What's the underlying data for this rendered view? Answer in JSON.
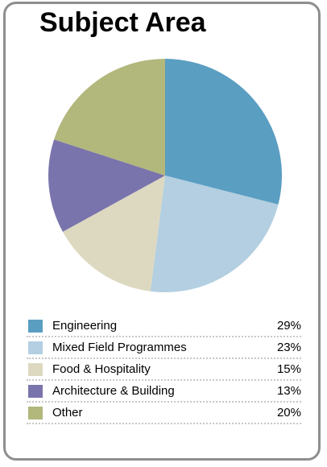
{
  "chart_data": {
    "type": "pie",
    "title": "Subject Area",
    "start_angle_deg": 0,
    "direction": "clockwise",
    "legend_position": "bottom",
    "slices": [
      {
        "label": "Engineering",
        "value": 29,
        "value_label": "29%",
        "color": "#5a9ec2"
      },
      {
        "label": "Mixed Field Programmes",
        "value": 23,
        "value_label": "23%",
        "color": "#b3cfe1"
      },
      {
        "label": "Food & Hospitality",
        "value": 15,
        "value_label": "15%",
        "color": "#ddd9c1"
      },
      {
        "label": "Architecture & Building",
        "value": 13,
        "value_label": "13%",
        "color": "#7a74ac"
      },
      {
        "label": "Other",
        "value": 20,
        "value_label": "20%",
        "color": "#b2b77c"
      }
    ]
  }
}
